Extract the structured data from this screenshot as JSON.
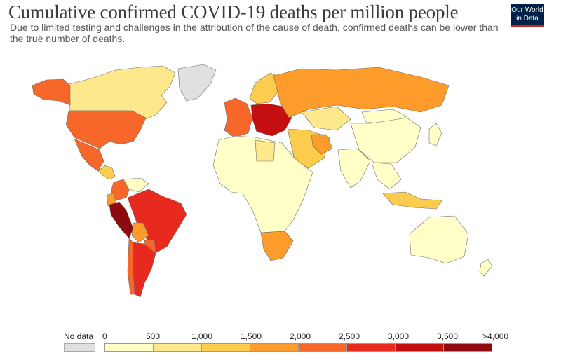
{
  "title": "Cumulative confirmed COVID-19 deaths per million people",
  "subtitle": "Due to limited testing and challenges in the attribution of the cause of death, confirmed deaths can be lower than the true number of deaths.",
  "logo": {
    "line1": "Our World",
    "line2": "in Data"
  },
  "legend": {
    "no_data_label": "No data",
    "no_data_color": "#e0e0e0",
    "tick_labels": [
      "0",
      "500",
      "1,000",
      "1,500",
      "2,000",
      "2,500",
      "3,000",
      "3,500",
      ">4,000"
    ],
    "bin_colors": [
      "#ffffc7",
      "#fde98b",
      "#fccc4e",
      "#fd9c2a",
      "#f7672a",
      "#e8291d",
      "#c50e10",
      "#8f0a0e"
    ]
  },
  "regions": [
    {
      "name": "Canada",
      "bin": 1
    },
    {
      "name": "Alaska (United States)",
      "bin": 4
    },
    {
      "name": "United States",
      "bin": 4
    },
    {
      "name": "Greenland",
      "bin": -1
    },
    {
      "name": "Mexico",
      "bin": 4
    },
    {
      "name": "Central America",
      "bin": 2
    },
    {
      "name": "Colombia",
      "bin": 4
    },
    {
      "name": "Venezuela",
      "bin": 0
    },
    {
      "name": "Ecuador",
      "bin": 3
    },
    {
      "name": "Peru",
      "bin": 7
    },
    {
      "name": "Brazil",
      "bin": 5
    },
    {
      "name": "Bolivia",
      "bin": 3
    },
    {
      "name": "Paraguay",
      "bin": 4
    },
    {
      "name": "Argentina",
      "bin": 5
    },
    {
      "name": "Chile",
      "bin": 4
    },
    {
      "name": "Western Europe",
      "bin": 4
    },
    {
      "name": "Central Europe",
      "bin": 6
    },
    {
      "name": "Scandinavia",
      "bin": 2
    },
    {
      "name": "Russia",
      "bin": 3
    },
    {
      "name": "Kazakhstan",
      "bin": 1
    },
    {
      "name": "China",
      "bin": 0
    },
    {
      "name": "Mongolia",
      "bin": 0
    },
    {
      "name": "Middle East",
      "bin": 2
    },
    {
      "name": "Iran",
      "bin": 3
    },
    {
      "name": "India",
      "bin": 0
    },
    {
      "name": "Southeast Asia",
      "bin": 0
    },
    {
      "name": "Indonesia",
      "bin": 2
    },
    {
      "name": "Africa",
      "bin": 0
    },
    {
      "name": "Libya",
      "bin": 1
    },
    {
      "name": "Southern Africa",
      "bin": 3
    },
    {
      "name": "Australia",
      "bin": 0
    },
    {
      "name": "New Zealand",
      "bin": 0
    },
    {
      "name": "Japan",
      "bin": 0
    }
  ]
}
